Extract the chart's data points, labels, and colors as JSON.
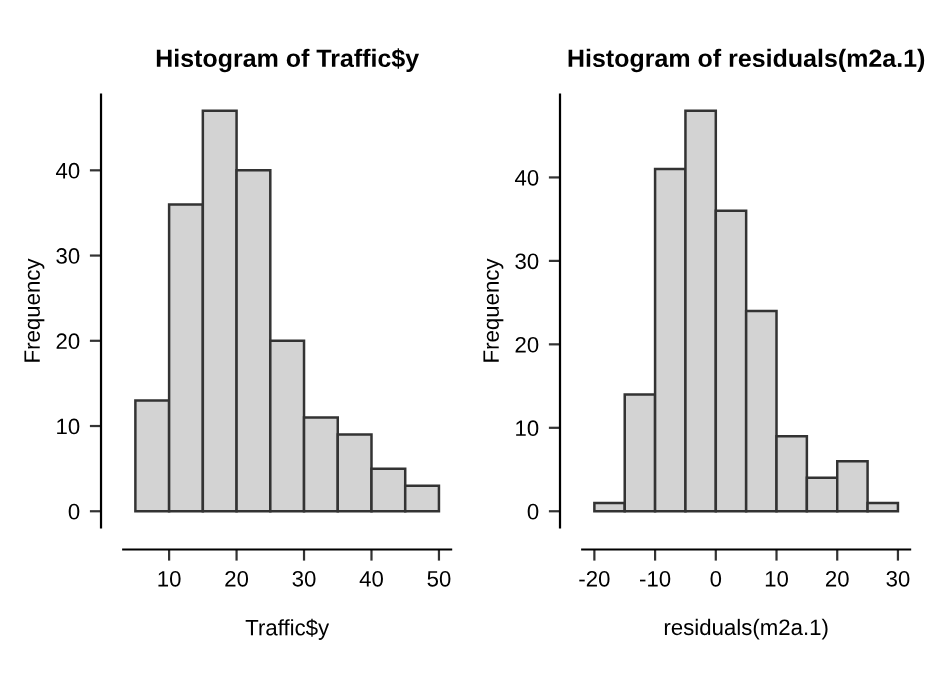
{
  "chart_data": [
    {
      "type": "histogram",
      "title": "Histogram of Traffic$y",
      "xlabel": "Traffic$y",
      "ylabel": "Frequency",
      "bins": [
        5,
        10,
        15,
        20,
        25,
        30,
        35,
        40,
        45,
        50
      ],
      "values": [
        13,
        36,
        47,
        40,
        20,
        11,
        9,
        5,
        3
      ],
      "color": "#d3d3d3",
      "xlim": [
        3.2,
        51.8
      ],
      "xticks": [
        10,
        20,
        30,
        40,
        50
      ],
      "ylim": [
        -1.88,
        48.88
      ],
      "yticks": [
        0,
        10,
        20,
        30,
        40
      ],
      "grid": false,
      "legend": false
    },
    {
      "type": "histogram",
      "title": "Histogram of residuals(m2a.1)",
      "xlabel": "residuals(m2a.1)",
      "ylabel": "Frequency",
      "bins": [
        -20,
        -15,
        -10,
        -5,
        0,
        5,
        10,
        15,
        20,
        25,
        30
      ],
      "values": [
        1,
        14,
        41,
        48,
        36,
        24,
        9,
        4,
        6,
        1
      ],
      "color": "#d3d3d3",
      "xlim": [
        -22,
        32
      ],
      "xticks": [
        -20,
        -10,
        0,
        10,
        20,
        30
      ],
      "ylim": [
        -1.92,
        49.92
      ],
      "yticks": [
        0,
        10,
        20,
        30,
        40
      ],
      "grid": false,
      "legend": false
    }
  ]
}
